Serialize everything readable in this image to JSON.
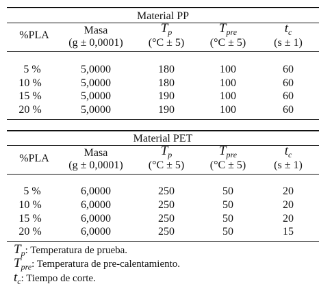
{
  "tables": [
    {
      "title": "Material PP",
      "columns": {
        "pla": "%PLA",
        "masa": "Masa",
        "masa_unit": "(g ± 0,0001)",
        "tp_sym": "T",
        "tp_sub": "p",
        "tp_unit": "(°C ± 5)",
        "tpre_sym": "T",
        "tpre_sub": "pre",
        "tpre_unit": "(°C ± 5)",
        "tc_sym": "t",
        "tc_sub": "c",
        "tc_unit": "(s ± 1)"
      },
      "rows": [
        {
          "pla": "5 %",
          "masa": "5,0000",
          "tp": "180",
          "tpre": "100",
          "tc": "60"
        },
        {
          "pla": "10 %",
          "masa": "5,0000",
          "tp": "180",
          "tpre": "100",
          "tc": "60"
        },
        {
          "pla": "15 %",
          "masa": "5,0000",
          "tp": "190",
          "tpre": "100",
          "tc": "60"
        },
        {
          "pla": "20 %",
          "masa": "5,0000",
          "tp": "190",
          "tpre": "100",
          "tc": "60"
        }
      ]
    },
    {
      "title": "Material PET",
      "columns": {
        "pla": "%PLA",
        "masa": "Masa",
        "masa_unit": "(g ± 0,0001)",
        "tp_sym": "T",
        "tp_sub": "p",
        "tp_unit": "(°C ± 5)",
        "tpre_sym": "T",
        "tpre_sub": "pre",
        "tpre_unit": "(°C ± 5)",
        "tc_sym": "t",
        "tc_sub": "c",
        "tc_unit": "(s ± 1)"
      },
      "rows": [
        {
          "pla": "5 %",
          "masa": "6,0000",
          "tp": "250",
          "tpre": "50",
          "tc": "20"
        },
        {
          "pla": "10 %",
          "masa": "6,0000",
          "tp": "250",
          "tpre": "50",
          "tc": "20"
        },
        {
          "pla": "15 %",
          "masa": "6,0000",
          "tp": "250",
          "tpre": "50",
          "tc": "20"
        },
        {
          "pla": "20 %",
          "masa": "6,0000",
          "tp": "250",
          "tpre": "50",
          "tc": "15"
        }
      ]
    }
  ],
  "notes": [
    {
      "sym": "T",
      "sub": "p",
      "text": ": Temperatura de prueba."
    },
    {
      "sym": "T",
      "sub": "pre",
      "text": ": Temperatura de pre-calentamiento."
    },
    {
      "sym": "t",
      "sub": "c",
      "text": ": Tiempo de corte."
    }
  ]
}
